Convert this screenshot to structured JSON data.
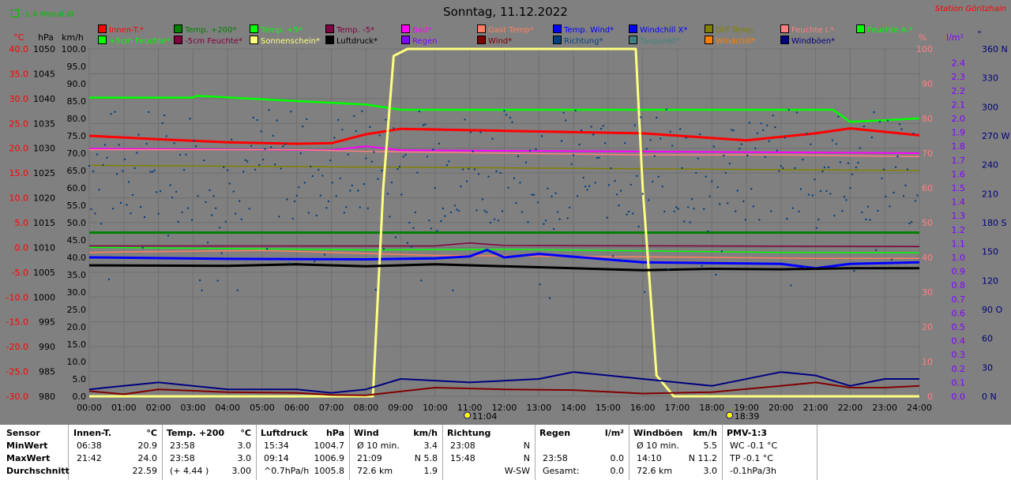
{
  "header": {
    "title": "Sonntag, 11.12.2022",
    "station": "Station Göritzhain",
    "avg_note": "-1.4 Monat-Ø"
  },
  "axes": {
    "units": {
      "temp": "°C",
      "pressure": "hPa",
      "speed": "km/h",
      "percent": "%",
      "rain": "l/m²",
      "direction": "°"
    },
    "temp_ticks": [
      "40.0",
      "35.0",
      "30.0",
      "25.0",
      "20.0",
      "15.0",
      "10.0",
      "5.0",
      "0.0",
      "-5.0",
      "-10.0",
      "-15.0",
      "-20.0",
      "-25.0",
      "-30.0"
    ],
    "pressure_ticks": [
      "1050",
      "1045",
      "1040",
      "1035",
      "1030",
      "1025",
      "1020",
      "1015",
      "1010",
      "1005",
      "1000",
      "995",
      "990",
      "985",
      "980"
    ],
    "speed_ticks": [
      "100.0",
      "95.0",
      "90.0",
      "85.0",
      "80.0",
      "75.0",
      "70.0",
      "65.0",
      "60.0",
      "55.0",
      "50.0",
      "45.0",
      "40.0",
      "35.0",
      "30.0",
      "25.0",
      "20.0",
      "15.0",
      "10.0",
      "5.0",
      "0.0"
    ],
    "percent_ticks": [
      "100",
      "90",
      "80",
      "70",
      "60",
      "50",
      "40",
      "30",
      "20",
      "10",
      "0"
    ],
    "rain_ticks": [
      "2.4",
      "2.3",
      "2.2",
      "2.1",
      "2.0",
      "1.9",
      "1.8",
      "1.7",
      "1.6",
      "1.5",
      "1.4",
      "1.3",
      "1.2",
      "1.1",
      "1.0",
      "0.9",
      "0.8",
      "0.7",
      "0.6",
      "0.5",
      "0.4",
      "0.3",
      "0.2",
      "0.1",
      "0.0"
    ],
    "direction_ticks": [
      "360 N",
      "330",
      "300",
      "270 W",
      "240",
      "210",
      "180 S",
      "150",
      "120",
      "90 O",
      "60",
      "30",
      "0 N"
    ],
    "time_ticks": [
      "00:00",
      "01:00",
      "02:00",
      "03:00",
      "04:00",
      "05:00",
      "06:00",
      "07:00",
      "08:00",
      "09:00",
      "10:00",
      "11:00",
      "12:00",
      "13:00",
      "14:00",
      "15:00",
      "16:00",
      "17:00",
      "18:00",
      "19:00",
      "20:00",
      "21:00",
      "22:00",
      "23:00",
      "24:00"
    ],
    "sunrise": "11:04",
    "sunset": "18:39"
  },
  "legend": [
    {
      "label": "Innen-T.*",
      "color": "#ff0000"
    },
    {
      "label": "Temp. +200*",
      "color": "#008000"
    },
    {
      "label": "Temp. +5*",
      "color": "#00ff00"
    },
    {
      "label": "Temp. -5*",
      "color": "#800040"
    },
    {
      "label": "Bad*",
      "color": "#ff00ff"
    },
    {
      "label": "Gast Temp*",
      "color": "#ff8060"
    },
    {
      "label": "Temp. Wind*",
      "color": "#0000ff"
    },
    {
      "label": "Windchill X*",
      "color": "#0000ff"
    },
    {
      "label": "Diff Temp.",
      "color": "#808000"
    },
    {
      "label": "Feuchte I.*",
      "color": "#ff8080"
    },
    {
      "label": "Feuchte A.*",
      "color": "#00ff00"
    },
    {
      "label": "+5cm Feuchte*",
      "color": "#00ff00"
    },
    {
      "label": "-5cm Feuchte*",
      "color": "#800040"
    },
    {
      "label": "Sonnenschein*",
      "color": "#ffff80"
    },
    {
      "label": "Luftdruck*",
      "color": "#000000"
    },
    {
      "label": "Regen",
      "color": "#8000ff"
    },
    {
      "label": "Wind*",
      "color": "#800000"
    },
    {
      "label": "Richtung*",
      "color": "#004080"
    },
    {
      "label": "Taupunkt*",
      "color": "#408080"
    },
    {
      "label": "Windchill*",
      "color": "#ff8000"
    },
    {
      "label": "Windböen*",
      "color": "#000080"
    }
  ],
  "chart_data": {
    "type": "line",
    "x_range": [
      0,
      24
    ],
    "series": [
      {
        "name": "Innen-T.*",
        "axis": "temp",
        "color": "#ff0000",
        "x": [
          0,
          2,
          4,
          6,
          7,
          8,
          9,
          12,
          16,
          19,
          21,
          22,
          24
        ],
        "values": [
          22.5,
          21.8,
          21.2,
          20.9,
          21.0,
          22.8,
          23.9,
          23.5,
          23.0,
          21.6,
          23.0,
          24.0,
          22.6
        ]
      },
      {
        "name": "Temp. +200*",
        "axis": "temp",
        "color": "#008000",
        "x": [
          0,
          24
        ],
        "values": [
          3.0,
          3.0
        ]
      },
      {
        "name": "Temp. +5*",
        "axis": "temp",
        "color": "#00ff00",
        "x": [
          0,
          4,
          8,
          12,
          16,
          20,
          24
        ],
        "values": [
          0.0,
          -0.2,
          -0.5,
          -0.4,
          -0.7,
          -1.0,
          -1.1
        ]
      },
      {
        "name": "Temp. -5*",
        "axis": "temp",
        "color": "#800040",
        "x": [
          0,
          10,
          11,
          12,
          24
        ],
        "values": [
          0.3,
          0.3,
          0.9,
          0.4,
          0.2
        ]
      },
      {
        "name": "Bad*",
        "axis": "temp",
        "color": "#ff00ff",
        "x": [
          0,
          7,
          8,
          9,
          24
        ],
        "values": [
          19.9,
          19.6,
          20.4,
          19.6,
          19.0
        ]
      },
      {
        "name": "Gast Temp*",
        "axis": "temp",
        "color": "#ff8060",
        "x": [
          0,
          5,
          8,
          10,
          14,
          18,
          21,
          24
        ],
        "values": [
          -1.0,
          -0.6,
          -1.2,
          -1.6,
          -1.8,
          -2.0,
          -2.2,
          -2.2
        ]
      },
      {
        "name": "Temp. Wind*",
        "axis": "temp",
        "color": "#0000ff",
        "x": [
          0,
          4,
          8,
          10,
          11,
          11.5,
          12,
          13,
          16,
          20,
          21,
          22,
          24
        ],
        "values": [
          -2.0,
          -2.3,
          -2.4,
          -2.2,
          -1.8,
          -0.5,
          -2.0,
          -1.3,
          -3.0,
          -3.3,
          -4.2,
          -3.3,
          -3.0
        ]
      },
      {
        "name": "Feuchte I.*",
        "axis": "percent",
        "color": "#ff8080",
        "x": [
          0,
          6,
          8,
          12,
          16,
          20,
          24
        ],
        "values": [
          71,
          71,
          70.5,
          70,
          69.5,
          69.5,
          69
        ]
      },
      {
        "name": "Feuchte A.*",
        "axis": "percent",
        "color": "#00ff00",
        "x": [
          0,
          3,
          3.1,
          6,
          8,
          9,
          21.5,
          22,
          24
        ],
        "values": [
          86,
          86,
          86.5,
          85,
          84,
          82.5,
          82.5,
          79,
          80
        ]
      },
      {
        "name": "Diff Temp.",
        "axis": "percent",
        "color": "#808000",
        "x": [
          0,
          24
        ],
        "values": [
          66.5,
          65
        ]
      },
      {
        "name": "Sonnenschein*",
        "axis": "percent",
        "color": "#ffff80",
        "x": [
          0,
          8.2,
          8.5,
          8.8,
          9.2,
          15.8,
          16.0,
          16.4,
          16.9,
          24
        ],
        "values": [
          0,
          0,
          60,
          98,
          100,
          100,
          60,
          6,
          0,
          0
        ]
      },
      {
        "name": "Luftdruck*",
        "axis": "pressure",
        "color": "#000000",
        "x": [
          0,
          4,
          6,
          8,
          10,
          12,
          14,
          16,
          18,
          20,
          22,
          24
        ],
        "values": [
          1006.4,
          1006.3,
          1006.6,
          1006.2,
          1006.6,
          1006.2,
          1005.8,
          1005.4,
          1005.7,
          1005.6,
          1005.8,
          1005.8
        ]
      },
      {
        "name": "Wind*",
        "axis": "speed",
        "color": "#800000",
        "x": [
          0,
          1,
          2,
          4,
          6,
          7,
          8,
          10,
          12,
          14,
          16,
          18,
          20,
          21,
          22,
          23,
          24
        ],
        "values": [
          1.5,
          0.6,
          2.0,
          1.2,
          1.0,
          0.4,
          0.3,
          2.5,
          2.0,
          1.8,
          0.8,
          1.2,
          3.0,
          4.0,
          2.5,
          2.5,
          3.0
        ]
      },
      {
        "name": "Windböen*",
        "axis": "speed",
        "color": "#000080",
        "x": [
          0,
          1,
          2,
          4,
          6,
          7,
          8,
          9,
          11,
          13,
          14,
          16,
          18,
          20,
          21,
          22,
          23,
          24
        ],
        "values": [
          2,
          3,
          4,
          2,
          2,
          1,
          2,
          5,
          4,
          5,
          7,
          5,
          3,
          7,
          6,
          3,
          5,
          5
        ]
      }
    ],
    "scatter": {
      "name": "Richtung*",
      "axis": "direction",
      "color": "#004080"
    }
  },
  "stats": {
    "row_labels": [
      "Sensor",
      "MinWert",
      "MaxWert",
      "Durchschnitt"
    ],
    "columns": [
      {
        "title": "Innen-T.",
        "unit": "°C",
        "rows": [
          [
            "06:38",
            "20.9"
          ],
          [
            "21:42",
            "24.0"
          ],
          [
            "",
            "22.59"
          ]
        ]
      },
      {
        "title": "Temp. +200",
        "unit": "°C",
        "rows": [
          [
            "23:58",
            "3.0"
          ],
          [
            "23:58",
            "3.0"
          ],
          [
            "(+ 4.44 )",
            "3.00"
          ]
        ]
      },
      {
        "title": "Luftdruck",
        "unit": "hPa",
        "rows": [
          [
            "15:34",
            "1004.7"
          ],
          [
            "09:14",
            "1006.9"
          ],
          [
            "^0.7hPa/h",
            "1005.8"
          ]
        ]
      },
      {
        "title": "Wind",
        "unit": "km/h",
        "rows": [
          [
            "Ø 10 min.",
            "3.4"
          ],
          [
            "21:09",
            "N 5.8"
          ],
          [
            "72.6 km",
            "1.9"
          ]
        ]
      },
      {
        "title": "Richtung",
        "unit": "",
        "rows": [
          [
            "23:08",
            "N"
          ],
          [
            "15:48",
            "N"
          ],
          [
            "",
            "W-SW"
          ]
        ]
      },
      {
        "title": "Regen",
        "unit": "l/m²",
        "rows": [
          [
            "",
            ""
          ],
          [
            "23:58",
            "0.0"
          ],
          [
            "Gesamt:",
            "0.0"
          ]
        ]
      },
      {
        "title": "Windböen",
        "unit": "km/h",
        "rows": [
          [
            "Ø 10 min.",
            "5.5"
          ],
          [
            "14:10",
            "N 11.2"
          ],
          [
            "72.6 km",
            "3.0"
          ]
        ]
      },
      {
        "title": "PMV-1:3",
        "unit": "",
        "rows": [
          [
            "WC -0.1 °C",
            ""
          ],
          [
            "TP -0.1 °C",
            ""
          ],
          [
            "-0.1hPa/3h",
            ""
          ]
        ]
      }
    ]
  }
}
